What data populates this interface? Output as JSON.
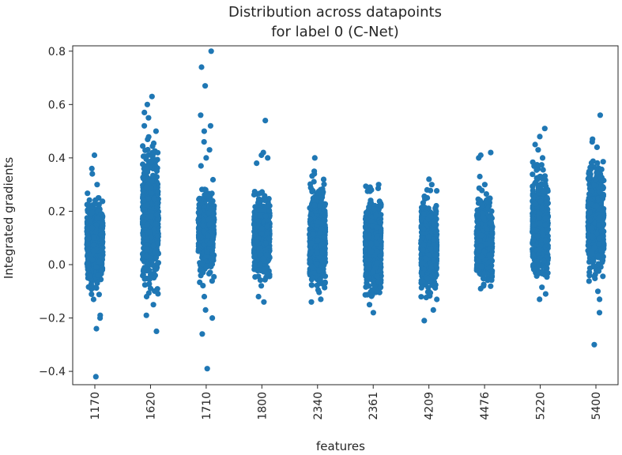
{
  "chart_data": {
    "type": "scatter",
    "title": [
      "Distribution across datapoints",
      "for label 0 (C-Net)"
    ],
    "xlabel": "features",
    "ylabel": "Integrated gradients",
    "categories": [
      "1170",
      "1620",
      "1710",
      "1800",
      "2340",
      "2361",
      "4209",
      "4476",
      "5220",
      "5400"
    ],
    "yticks": [
      "−0.4",
      "−0.2",
      "0.0",
      "0.2",
      "0.4",
      "0.6",
      "0.8"
    ],
    "ylim": [
      -0.45,
      0.82
    ],
    "grid": false,
    "marker_color": "#1f77b4",
    "series": [
      {
        "category": "1170",
        "points": 600,
        "dense_range": [
          -0.1,
          0.25
        ],
        "outliers": [
          0.41,
          0.36,
          0.34,
          0.3,
          -0.19,
          -0.2,
          -0.24,
          -0.42
        ]
      },
      {
        "category": "1620",
        "points": 600,
        "dense_range": [
          -0.1,
          0.45
        ],
        "outliers": [
          0.63,
          0.6,
          0.57,
          0.55,
          0.52,
          0.5,
          -0.12,
          -0.15,
          -0.19,
          -0.25
        ]
      },
      {
        "category": "1710",
        "points": 400,
        "dense_range": [
          -0.05,
          0.3
        ],
        "outliers": [
          0.8,
          0.74,
          0.67,
          0.56,
          0.52,
          0.5,
          0.46,
          0.43,
          0.4,
          0.37,
          -0.12,
          -0.17,
          -0.2,
          -0.26,
          -0.39
        ]
      },
      {
        "category": "1800",
        "points": 500,
        "dense_range": [
          -0.08,
          0.3
        ],
        "outliers": [
          0.54,
          0.42,
          0.41,
          0.4,
          0.38,
          -0.12,
          -0.14
        ]
      },
      {
        "category": "2340",
        "points": 600,
        "dense_range": [
          -0.1,
          0.3
        ],
        "outliers": [
          0.4,
          0.35,
          0.34,
          -0.13,
          -0.14
        ]
      },
      {
        "category": "2361",
        "points": 600,
        "dense_range": [
          -0.12,
          0.27
        ],
        "outliers": [
          0.3,
          0.29,
          0.28,
          -0.15,
          -0.18
        ]
      },
      {
        "category": "4209",
        "points": 600,
        "dense_range": [
          -0.12,
          0.25
        ],
        "outliers": [
          0.32,
          0.3,
          0.28,
          -0.17,
          -0.21
        ]
      },
      {
        "category": "4476",
        "points": 600,
        "dense_range": [
          -0.07,
          0.26
        ],
        "outliers": [
          0.42,
          0.41,
          0.4,
          0.33,
          0.3,
          -0.08,
          -0.09
        ]
      },
      {
        "category": "5220",
        "points": 500,
        "dense_range": [
          -0.06,
          0.35
        ],
        "outliers": [
          0.51,
          0.48,
          0.45,
          0.43,
          0.4,
          -0.11,
          -0.13
        ]
      },
      {
        "category": "5400",
        "points": 550,
        "dense_range": [
          -0.05,
          0.4
        ],
        "outliers": [
          0.56,
          0.47,
          0.46,
          0.44,
          -0.1,
          -0.13,
          -0.18,
          -0.3
        ]
      }
    ]
  }
}
